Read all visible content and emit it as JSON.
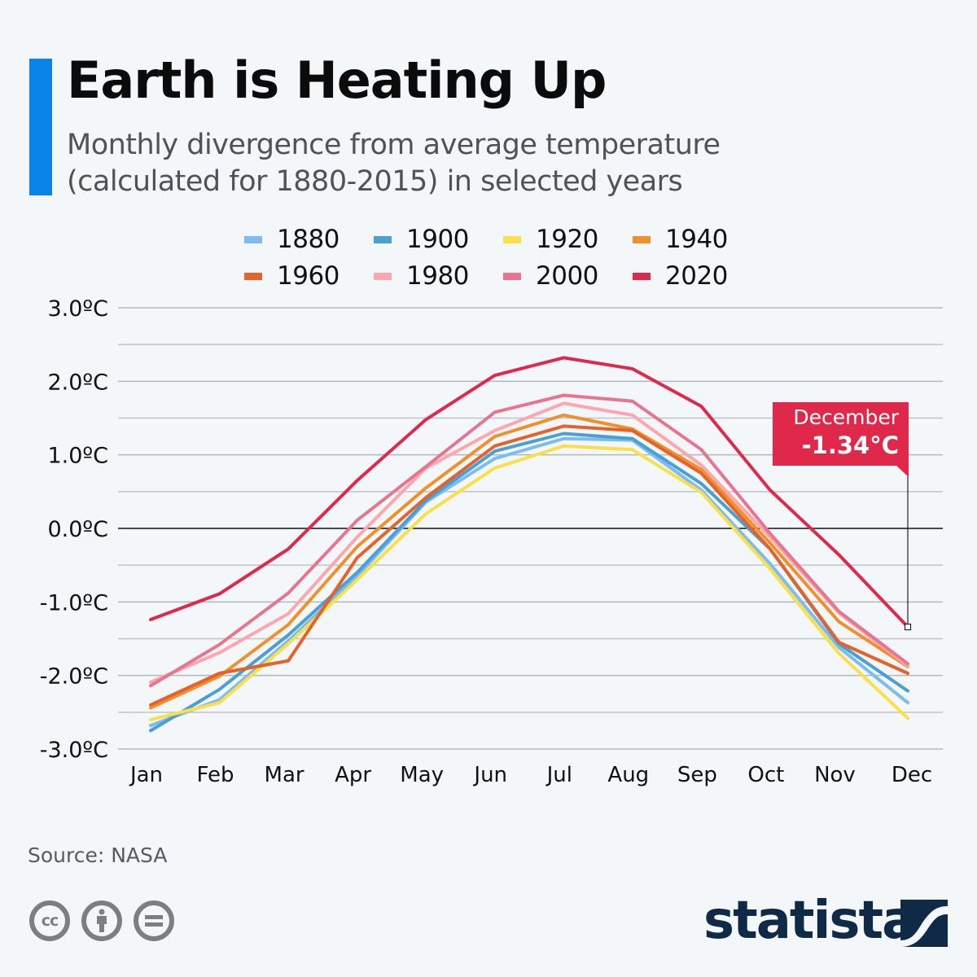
{
  "header": {
    "title": "Earth is Heating Up",
    "subtitle_line1": "Monthly divergence from average temperature",
    "subtitle_line2": "(calculated for 1880-2015) in selected years",
    "accent_color": "#0a84e6"
  },
  "annotation": {
    "month": "December",
    "value": "-1.34°C",
    "color": "#e0284a"
  },
  "footer": {
    "source": "Source: NASA",
    "license_icons": [
      "cc-icon",
      "attribution-icon",
      "no-derivatives-icon"
    ],
    "brand": "statista",
    "brand_color": "#0f2a46"
  },
  "chart_data": {
    "type": "line",
    "title": "Earth is Heating Up",
    "subtitle": "Monthly divergence from average temperature (calculated for 1880-2015) in selected years",
    "xlabel": "",
    "ylabel": "",
    "categories": [
      "Jan",
      "Feb",
      "Mar",
      "Apr",
      "May",
      "Jun",
      "Jul",
      "Aug",
      "Sep",
      "Oct",
      "Nov",
      "Dec"
    ],
    "ylim": [
      -3.0,
      3.0
    ],
    "yticks": [
      3.0,
      2.0,
      1.0,
      0.0,
      -1.0,
      -2.0,
      -3.0
    ],
    "ytick_labels": [
      "3.0ºC",
      "2.0ºC",
      "1.0ºC",
      "0.0ºC",
      "-1.0ºC",
      "-2.0ºC",
      "-3.0ºC"
    ],
    "minor_gridlines": [
      2.5,
      1.5,
      0.5,
      -0.5,
      -1.5,
      -2.5
    ],
    "grid": true,
    "legend_position": "top",
    "series": [
      {
        "name": "1880",
        "color": "#7cbcf0",
        "values": [
          -2.68,
          -2.33,
          -1.53,
          -0.65,
          0.36,
          0.95,
          1.22,
          1.2,
          0.52,
          -0.48,
          -1.62,
          -2.37
        ]
      },
      {
        "name": "1900",
        "color": "#4a9fd4",
        "values": [
          -2.75,
          -2.19,
          -1.45,
          -0.6,
          0.38,
          1.05,
          1.29,
          1.22,
          0.61,
          -0.28,
          -1.57,
          -2.21
        ]
      },
      {
        "name": "1920",
        "color": "#f9e04a",
        "values": [
          -2.6,
          -2.37,
          -1.57,
          -0.7,
          0.2,
          0.82,
          1.12,
          1.07,
          0.49,
          -0.55,
          -1.7,
          -2.58
        ]
      },
      {
        "name": "1940",
        "color": "#f0902a",
        "values": [
          -2.44,
          -2.01,
          -1.31,
          -0.25,
          0.55,
          1.25,
          1.54,
          1.35,
          0.8,
          -0.2,
          -1.27,
          -1.88
        ]
      },
      {
        "name": "1960",
        "color": "#e4632a",
        "values": [
          -2.4,
          -1.97,
          -1.8,
          -0.4,
          0.42,
          1.12,
          1.39,
          1.33,
          0.75,
          -0.28,
          -1.55,
          -1.97
        ]
      },
      {
        "name": "1980",
        "color": "#ffa5ad",
        "values": [
          -2.09,
          -1.69,
          -1.16,
          -0.12,
          0.82,
          1.33,
          1.7,
          1.54,
          0.86,
          -0.12,
          -1.15,
          -1.87
        ]
      },
      {
        "name": "2000",
        "color": "#e8758f",
        "values": [
          -2.14,
          -1.58,
          -0.88,
          0.11,
          0.84,
          1.58,
          1.81,
          1.73,
          1.07,
          -0.07,
          -1.13,
          -1.84
        ]
      },
      {
        "name": "2020",
        "color": "#e0284a",
        "values": [
          -1.24,
          -0.89,
          -0.28,
          0.65,
          1.48,
          2.08,
          2.32,
          2.17,
          1.66,
          0.52,
          -0.36,
          -1.34
        ]
      }
    ],
    "annotations": [
      {
        "series": "2020",
        "category": "Dec",
        "text": "December -1.34°C"
      }
    ]
  }
}
